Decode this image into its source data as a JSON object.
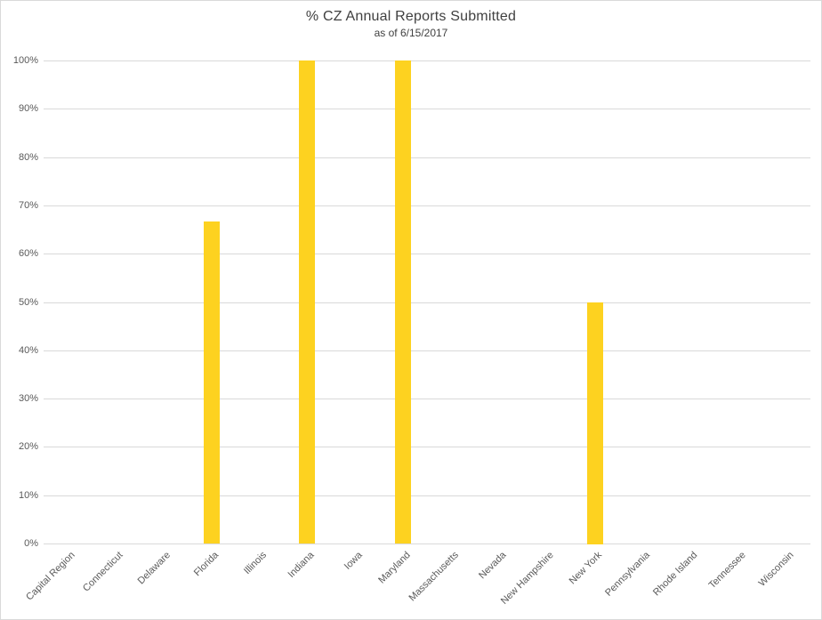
{
  "chart_data": {
    "type": "bar",
    "title": "% CZ Annual Reports Submitted",
    "subtitle": "as of 6/15/2017",
    "categories": [
      "Capital Region",
      "Connecticut",
      "Delaware",
      "Florida",
      "Illinois",
      "Indiana",
      "Iowa",
      "Maryland",
      "Massachusetts",
      "Nevada",
      "New Hampshire",
      "New York",
      "Pennsylvania",
      "Rhode Island",
      "Tennessee",
      "Wisconsin"
    ],
    "values": [
      0,
      0,
      0,
      66.7,
      0,
      100,
      0,
      100,
      0,
      0,
      0,
      50,
      0,
      0,
      0,
      0
    ],
    "xlabel": "",
    "ylabel": "",
    "ylim": [
      0,
      100
    ],
    "ytick_step": 10,
    "ytick_suffix": "%",
    "grid": true,
    "legend": false,
    "bar_color": "#FDD220"
  },
  "colors": {
    "bar": "#FDD220",
    "gridline": "#D9D9D9",
    "axis_label": "#595959",
    "title_text": "#404040",
    "frame_border": "#D9D9D9",
    "background": "#FFFFFF"
  }
}
